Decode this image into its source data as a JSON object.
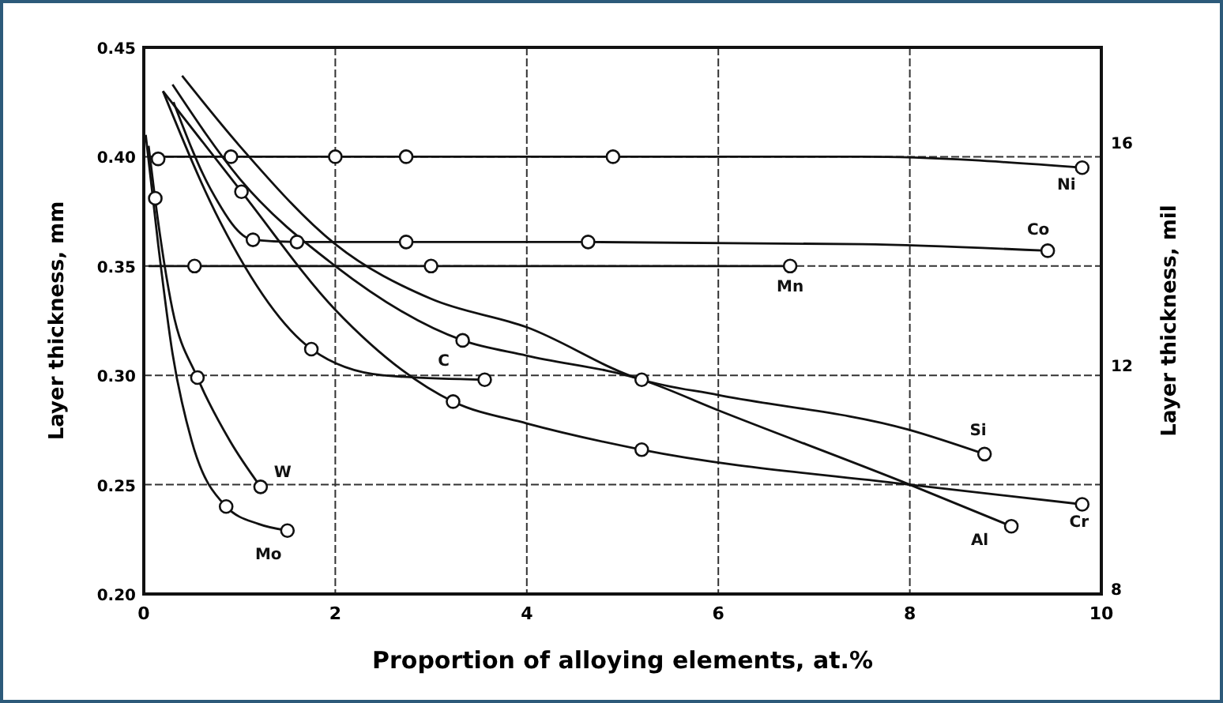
{
  "chart_data": {
    "type": "line",
    "xlabel": "Proportion of alloying elements, at.%",
    "ylabel": "Layer thickness, mm",
    "y2label": "Layer thickness, mil",
    "xlim": [
      0,
      10
    ],
    "xticks": [
      0,
      2,
      4,
      6,
      8,
      10
    ],
    "ylim": [
      0.2,
      0.45
    ],
    "yticks": [
      {
        "value": 0.2,
        "label": "0.20"
      },
      {
        "value": 0.25,
        "label": "0.25"
      },
      {
        "value": 0.3,
        "label": "0.30"
      },
      {
        "value": 0.35,
        "label": "0.35"
      },
      {
        "value": 0.4,
        "label": "0.40"
      },
      {
        "value": 0.45,
        "label": "0.45"
      }
    ],
    "y2lim": [
      7.9,
      17.7
    ],
    "y2ticks": [
      8,
      12,
      16
    ],
    "grid": true,
    "line_style": "solid",
    "series": [
      {
        "name": "Ni",
        "color": "#111111",
        "marker": "none",
        "x": [
          0.05,
          0.9,
          2.0,
          2.7,
          4.9,
          7.5,
          9.8
        ],
        "values": [
          0.4,
          0.4,
          0.4,
          0.4,
          0.4,
          0.4,
          0.395
        ]
      },
      {
        "name": "Co",
        "color": "#111111",
        "marker": "none",
        "x": [
          0.31,
          0.7,
          1.14,
          1.6,
          2.74,
          4.64,
          7.5,
          9.44
        ],
        "values": [
          0.425,
          0.385,
          0.362,
          0.361,
          0.361,
          0.361,
          0.36,
          0.357
        ]
      },
      {
        "name": "Mn",
        "color": "#111111",
        "marker": "none",
        "x": [
          0.05,
          0.53,
          3.0,
          6.75
        ],
        "values": [
          0.35,
          0.35,
          0.35,
          0.35
        ]
      },
      {
        "name": "C",
        "color": "#111111",
        "marker": "none",
        "x": [
          0.2,
          0.8,
          1.75,
          2.5,
          3.56
        ],
        "values": [
          0.43,
          0.37,
          0.312,
          0.3,
          0.298
        ]
      },
      {
        "name": "W",
        "color": "#111111",
        "marker": "none",
        "x": [
          0.05,
          0.12,
          0.3,
          0.56,
          0.9,
          1.22
        ],
        "values": [
          0.405,
          0.38,
          0.33,
          0.299,
          0.27,
          0.249
        ]
      },
      {
        "name": "Mo",
        "color": "#111111",
        "marker": "none",
        "x": [
          0.02,
          0.15,
          0.3,
          0.5,
          0.86,
          1.2,
          1.5
        ],
        "values": [
          0.41,
          0.36,
          0.31,
          0.27,
          0.24,
          0.232,
          0.229
        ]
      },
      {
        "name": "Si",
        "color": "#111111",
        "marker": "none",
        "x": [
          0.4,
          1.0,
          2.0,
          3.0,
          4.0,
          5.2,
          6.0,
          8.0,
          8.78
        ],
        "values": [
          0.437,
          0.405,
          0.36,
          0.335,
          0.322,
          0.298,
          0.291,
          0.275,
          0.264
        ]
      },
      {
        "name": "Al",
        "color": "#111111",
        "marker": "none",
        "x": [
          0.3,
          1.0,
          2.0,
          3.33,
          4.0,
          5.2,
          6.0,
          8.0,
          9.06
        ],
        "values": [
          0.433,
          0.39,
          0.35,
          0.316,
          0.309,
          0.298,
          0.284,
          0.25,
          0.231
        ]
      },
      {
        "name": "Cr",
        "color": "#111111",
        "marker": "none",
        "x": [
          0.2,
          1.02,
          2.0,
          3.23,
          4.0,
          5.2,
          8.0,
          9.8
        ],
        "values": [
          0.43,
          0.384,
          0.33,
          0.288,
          0.278,
          0.266,
          0.25,
          0.241
        ]
      },
      {
        "type": "scatter",
        "color": "#111111",
        "marker": "circle",
        "x": [
          0.15,
          0.12,
          0.91,
          2.0,
          2.74,
          4.9,
          9.8,
          1.14,
          1.6,
          2.74,
          4.64,
          9.44,
          0.53,
          3.0,
          6.75,
          1.75,
          3.56,
          0.56,
          1.22,
          0.86,
          1.5,
          8.78,
          3.33,
          5.2,
          9.06,
          1.02,
          3.23,
          5.2,
          9.8
        ],
        "values": [
          0.399,
          0.381,
          0.4,
          0.4,
          0.4,
          0.4,
          0.395,
          0.362,
          0.361,
          0.361,
          0.361,
          0.357,
          0.35,
          0.35,
          0.35,
          0.312,
          0.298,
          0.299,
          0.249,
          0.24,
          0.229,
          0.264,
          0.316,
          0.298,
          0.231,
          0.384,
          0.288,
          0.266,
          0.241
        ]
      }
    ]
  }
}
